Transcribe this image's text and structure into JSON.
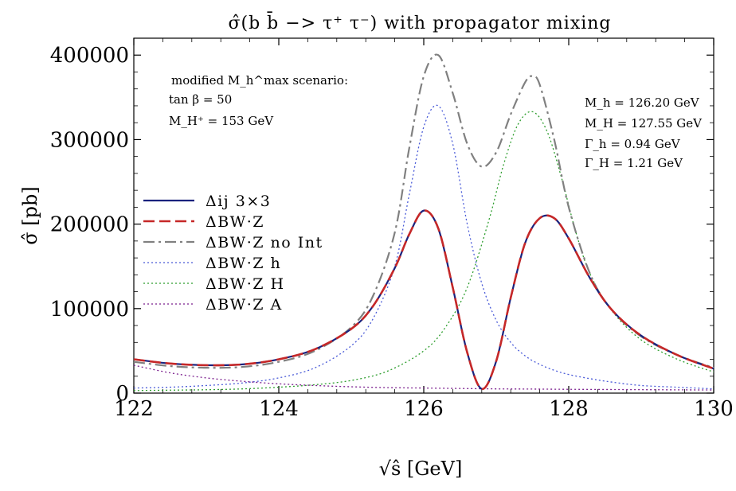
{
  "chart_data": {
    "type": "line",
    "title": "σ̂(b b̄ −> τ⁺ τ⁻)  with propagator mixing",
    "xlabel": "√ŝ  [GeV]",
    "ylabel": "σ̂  [pb]",
    "xlim": [
      122,
      130
    ],
    "ylim": [
      0,
      420000
    ],
    "xticks": [
      "122",
      "124",
      "126",
      "128",
      "130"
    ],
    "xtick_values": [
      122,
      124,
      126,
      128,
      130
    ],
    "yticks": [
      "0",
      "100000",
      "200000",
      "300000",
      "400000"
    ],
    "ytick_values": [
      0,
      100000,
      200000,
      300000,
      400000
    ],
    "grid": false,
    "legend_position": "center-left",
    "annotations_left": [
      "modified  M_h^max  scenario:",
      "tan β  =  50",
      "M_H⁺  =  153  GeV"
    ],
    "annotations_right": [
      "M_h = 126.20  GeV",
      "M_H = 127.55  GeV",
      "Γ_h = 0.94  GeV",
      "Γ_H = 1.21  GeV"
    ],
    "series": [
      {
        "name": "Δij 3×3",
        "color": "#1a237e",
        "style": "solid",
        "x": [
          122.0,
          122.5,
          123.0,
          123.5,
          124.0,
          124.5,
          125.0,
          125.3,
          125.6,
          125.8,
          126.0,
          126.2,
          126.4,
          126.6,
          126.8,
          127.0,
          127.2,
          127.4,
          127.6,
          127.8,
          128.0,
          128.3,
          128.6,
          129.0,
          129.5,
          130.0
        ],
        "y": [
          40000,
          35000,
          33000,
          34000,
          40000,
          52000,
          76000,
          103000,
          148000,
          188000,
          216000,
          195000,
          125000,
          48000,
          5000,
          38000,
          113000,
          178000,
          207000,
          207000,
          183000,
          135000,
          98000,
          68000,
          45000,
          29000
        ]
      },
      {
        "name": "ΔBW·Z",
        "color": "#c62828",
        "style": "dashed",
        "x": [
          122.0,
          122.5,
          123.0,
          123.5,
          124.0,
          124.5,
          125.0,
          125.3,
          125.6,
          125.8,
          126.0,
          126.2,
          126.4,
          126.6,
          126.8,
          127.0,
          127.2,
          127.4,
          127.6,
          127.8,
          128.0,
          128.3,
          128.6,
          129.0,
          129.5,
          130.0
        ],
        "y": [
          40000,
          35000,
          33000,
          34000,
          40000,
          52000,
          76000,
          103000,
          148000,
          188000,
          216000,
          195000,
          125000,
          48000,
          5000,
          38000,
          113000,
          178000,
          207000,
          207000,
          183000,
          135000,
          98000,
          68000,
          45000,
          29000
        ]
      },
      {
        "name": "ΔBW·Z no Int",
        "color": "#808080",
        "style": "dashdot",
        "x": [
          122.0,
          122.5,
          123.0,
          123.5,
          124.0,
          124.5,
          125.0,
          125.3,
          125.6,
          125.8,
          126.0,
          126.2,
          126.4,
          126.6,
          126.8,
          127.0,
          127.2,
          127.4,
          127.5,
          127.6,
          127.8,
          128.0,
          128.3,
          128.6,
          129.0,
          129.5,
          130.0
        ],
        "y": [
          37000,
          32000,
          30000,
          31000,
          37000,
          50000,
          78000,
          115000,
          190000,
          290000,
          375000,
          400000,
          355000,
          295000,
          268000,
          285000,
          330000,
          368000,
          375000,
          365000,
          300000,
          220000,
          140000,
          98000,
          67000,
          45000,
          30000
        ]
      },
      {
        "name": "ΔBW·Z h",
        "color": "#4a5bd8",
        "style": "dotted",
        "x": [
          122.0,
          122.5,
          123.0,
          123.5,
          124.0,
          124.5,
          125.0,
          125.3,
          125.6,
          125.8,
          126.0,
          126.2,
          126.4,
          126.6,
          126.8,
          127.0,
          127.2,
          127.4,
          127.6,
          127.8,
          128.0,
          128.3,
          128.6,
          129.0,
          129.5,
          130.0
        ],
        "y": [
          6000,
          7000,
          9000,
          12000,
          18000,
          30000,
          56000,
          88000,
          150000,
          235000,
          315000,
          340000,
          295000,
          200000,
          130000,
          86000,
          60000,
          44000,
          34000,
          27000,
          22000,
          17000,
          13000,
          9000,
          7000,
          5000
        ]
      },
      {
        "name": "ΔBW·Z H",
        "color": "#2e9e2e",
        "style": "dotted",
        "x": [
          122.0,
          122.5,
          123.0,
          123.5,
          124.0,
          124.5,
          125.0,
          125.5,
          126.0,
          126.3,
          126.6,
          126.9,
          127.1,
          127.3,
          127.5,
          127.7,
          127.9,
          128.1,
          128.3,
          128.6,
          129.0,
          129.5,
          130.0
        ],
        "y": [
          3000,
          3500,
          4000,
          5000,
          7000,
          10000,
          15000,
          26000,
          50000,
          78000,
          125000,
          205000,
          270000,
          318000,
          333000,
          310000,
          255000,
          190000,
          140000,
          97000,
          63000,
          40000,
          25000
        ]
      },
      {
        "name": "ΔBW·Z A",
        "color": "#7b1f8e",
        "style": "dotted",
        "x": [
          122.0,
          122.5,
          123.0,
          123.5,
          124.0,
          124.5,
          125.0,
          125.5,
          126.0,
          126.5,
          127.0,
          127.5,
          128.0,
          128.5,
          129.0,
          129.5,
          130.0
        ],
        "y": [
          33000,
          24000,
          18000,
          14000,
          11000,
          9000,
          7500,
          6500,
          6000,
          5500,
          5000,
          4800,
          4500,
          4300,
          4100,
          3900,
          3700
        ]
      }
    ]
  }
}
